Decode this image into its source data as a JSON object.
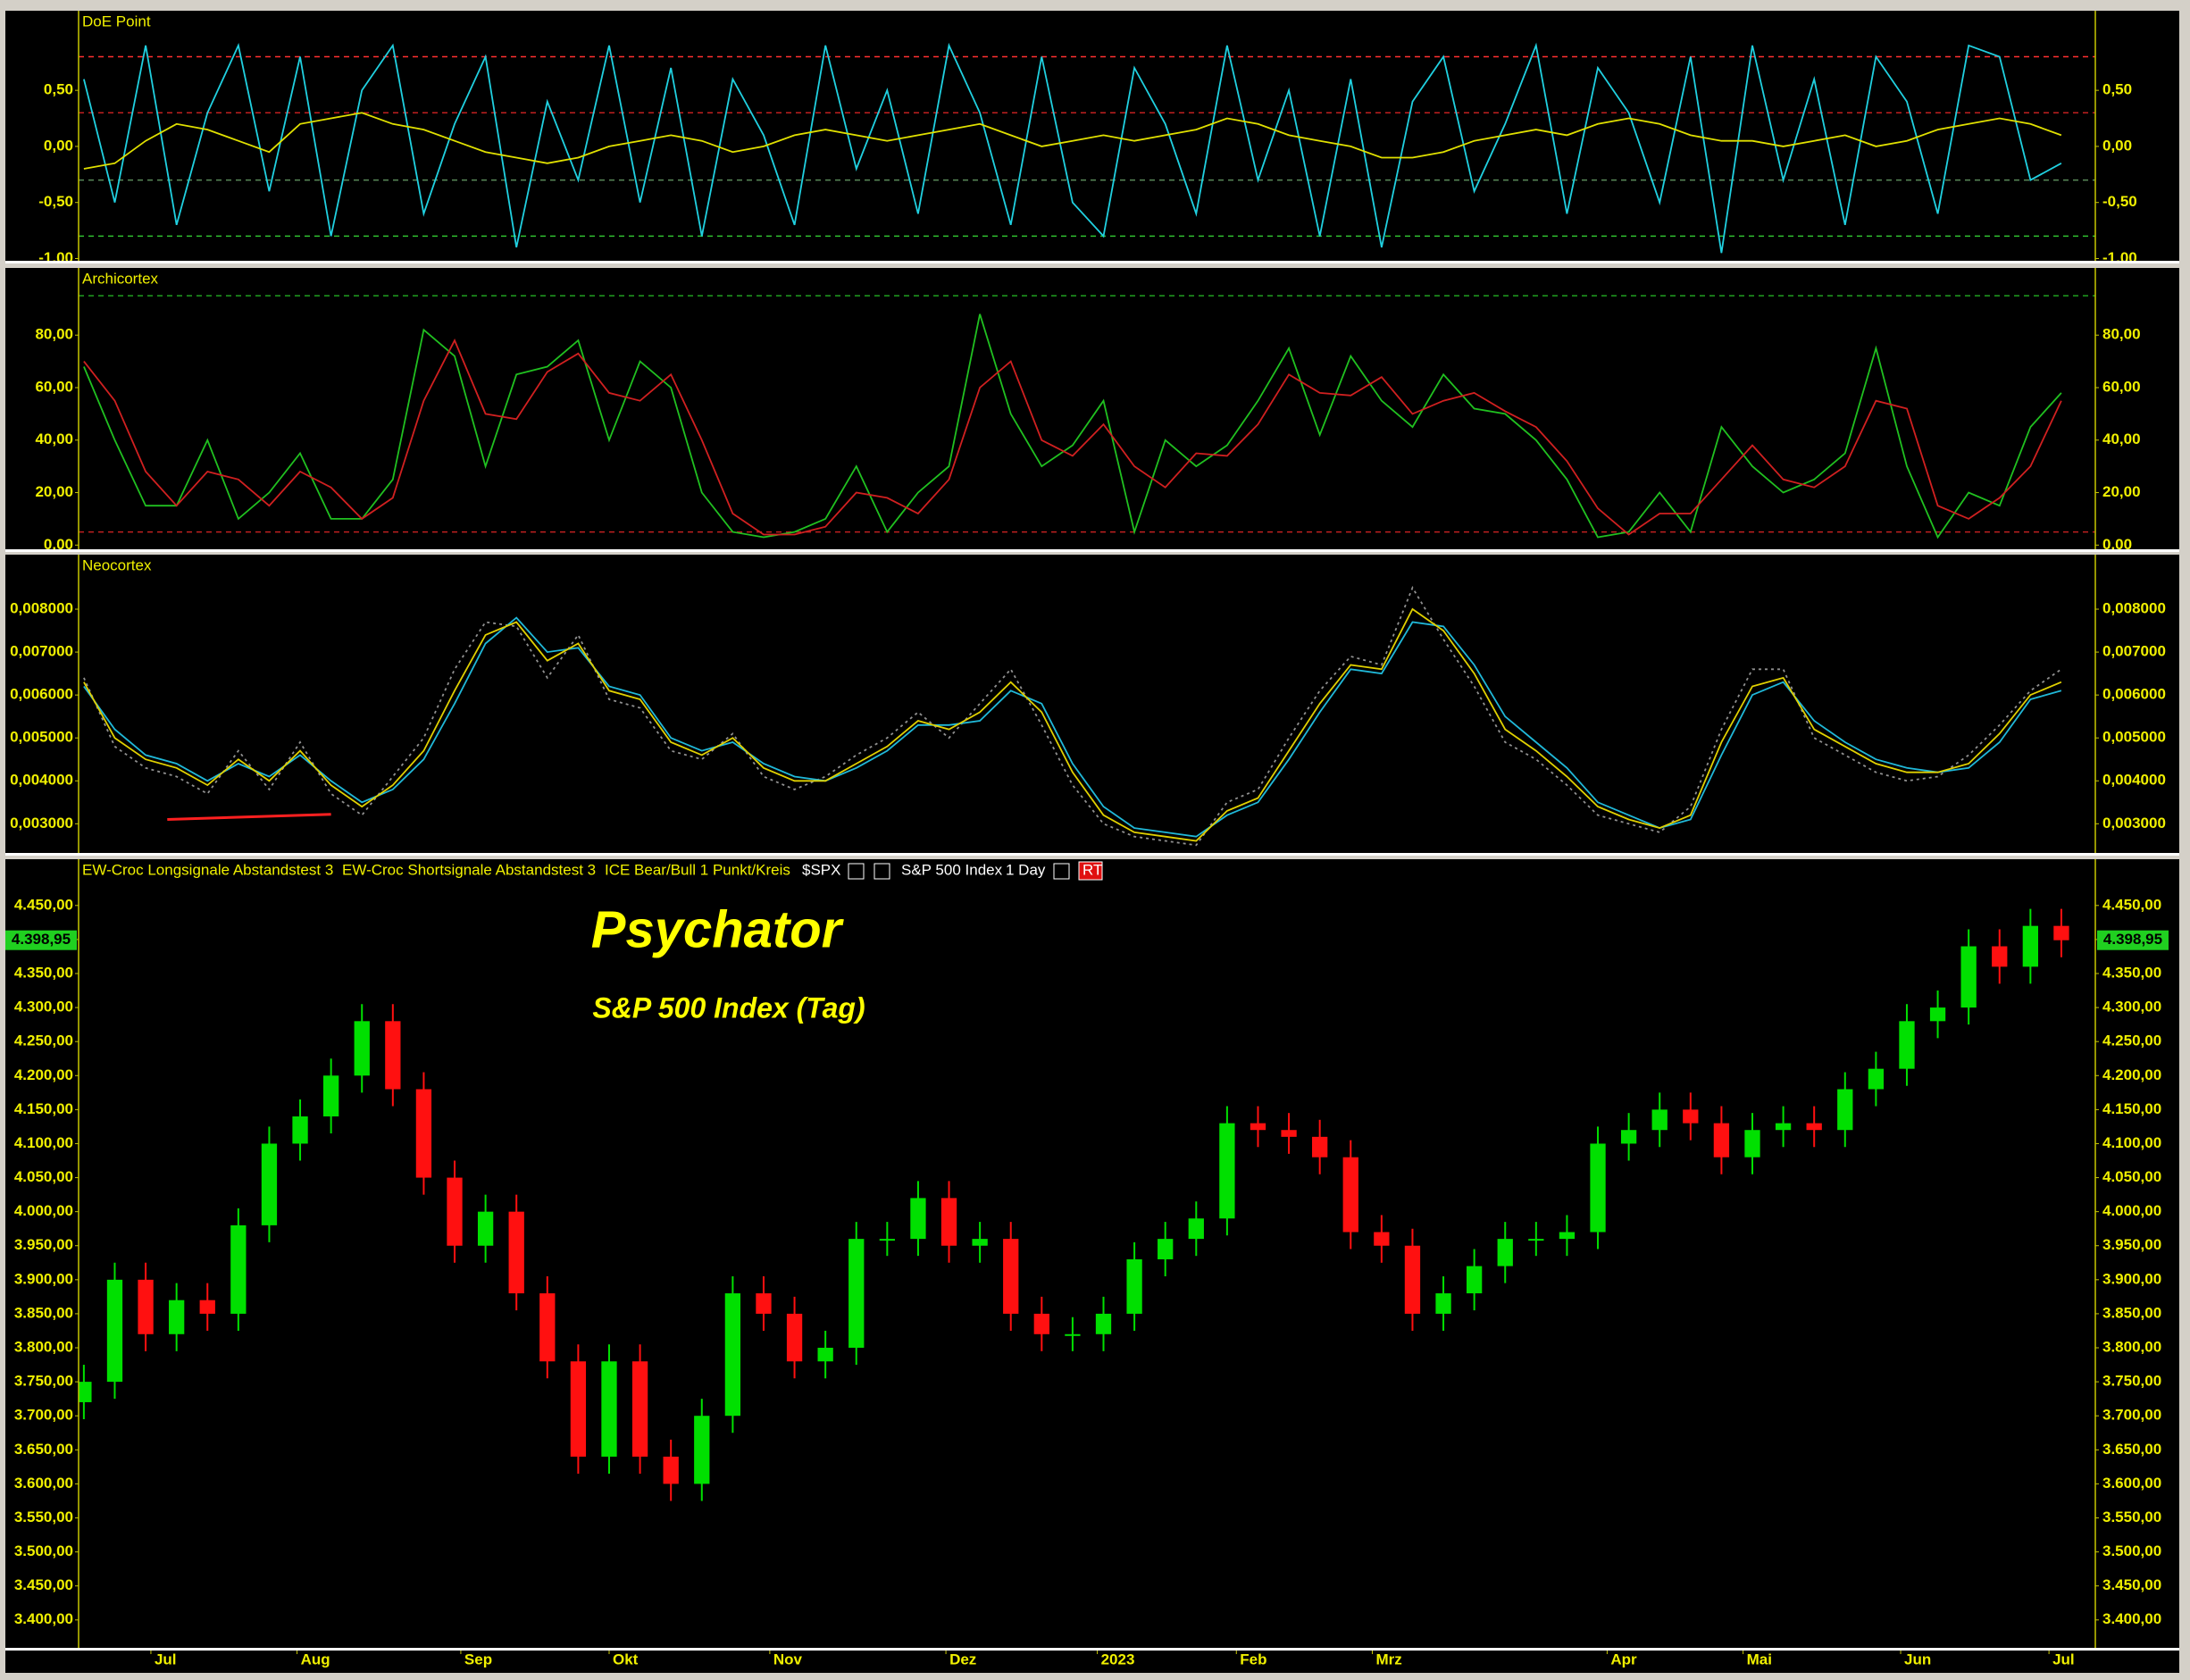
{
  "chart_data": [
    {
      "type": "line",
      "title": "DoE Point",
      "xlim": [
        -0.17,
        65.1
      ],
      "ylim": [
        -1.02,
        1.21
      ],
      "yticks": [
        {
          "value": 0.5,
          "label": "0,50"
        },
        {
          "value": 0,
          "label": "0,00"
        },
        {
          "value": -0.5,
          "label": "-0,50"
        },
        {
          "value": -1,
          "label": "-1,00"
        }
      ],
      "reference_lines": [
        {
          "value": 0.8,
          "color": "#ff3030"
        },
        {
          "value": 0.3,
          "color": "#c02020"
        },
        {
          "value": -0.3,
          "color": "#5a8a5a"
        },
        {
          "value": -0.8,
          "color": "#30c030"
        }
      ],
      "series": [
        {
          "color": "#20d0e0",
          "values": [
            0.6,
            -0.5,
            0.9,
            -0.7,
            0.3,
            0.9,
            -0.4,
            0.8,
            -0.8,
            0.5,
            0.9,
            -0.6,
            0.2,
            0.8,
            -0.9,
            0.4,
            -0.3,
            0.9,
            -0.5,
            0.7,
            -0.8,
            0.6,
            0.1,
            -0.7,
            0.9,
            -0.2,
            0.5,
            -0.6,
            0.9,
            0.3,
            -0.7,
            0.8,
            -0.5,
            -0.8,
            0.7,
            0.2,
            -0.6,
            0.9,
            -0.3,
            0.5,
            -0.8,
            0.6,
            -0.9,
            0.4,
            0.8,
            -0.4,
            0.2,
            0.9,
            -0.6,
            0.7,
            0.3,
            -0.5,
            0.8,
            -0.95,
            0.9,
            -0.3,
            0.6,
            -0.7,
            0.8,
            0.4,
            -0.6,
            0.9,
            0.8,
            -0.3,
            -0.15
          ]
        },
        {
          "color": "#e0e000",
          "values": [
            -0.2,
            -0.15,
            0.05,
            0.2,
            0.15,
            0.05,
            -0.05,
            0.2,
            0.25,
            0.3,
            0.2,
            0.15,
            0.05,
            -0.05,
            -0.1,
            -0.15,
            -0.1,
            0.0,
            0.05,
            0.1,
            0.05,
            -0.05,
            0.0,
            0.1,
            0.15,
            0.1,
            0.05,
            0.1,
            0.15,
            0.2,
            0.1,
            0.0,
            0.05,
            0.1,
            0.05,
            0.1,
            0.15,
            0.25,
            0.2,
            0.1,
            0.05,
            0.0,
            -0.1,
            -0.1,
            -0.05,
            0.05,
            0.1,
            0.15,
            0.1,
            0.2,
            0.25,
            0.2,
            0.1,
            0.05,
            0.05,
            0.0,
            0.05,
            0.1,
            0.0,
            0.05,
            0.15,
            0.2,
            0.25,
            0.2,
            0.1
          ]
        }
      ]
    },
    {
      "type": "line",
      "title": "Archicortex",
      "xlim": [
        -0.17,
        65.1
      ],
      "ylim": [
        -1.6,
        105.6
      ],
      "yticks": [
        {
          "value": 0,
          "label": "0,00"
        },
        {
          "value": 20,
          "label": "20,00"
        },
        {
          "value": 40,
          "label": "40,00"
        },
        {
          "value": 60,
          "label": "60,00"
        },
        {
          "value": 80,
          "label": "80,00"
        }
      ],
      "reference_lines": [
        {
          "value": 95,
          "color": "#20a020"
        },
        {
          "value": 5,
          "color": "#c02020"
        }
      ],
      "series": [
        {
          "color": "#20c020",
          "values": [
            68,
            40,
            15,
            15,
            40,
            10,
            20,
            35,
            10,
            10,
            25,
            82,
            72,
            30,
            65,
            68,
            78,
            40,
            70,
            60,
            20,
            5,
            3,
            5,
            10,
            30,
            5,
            20,
            30,
            88,
            50,
            30,
            38,
            55,
            5,
            40,
            30,
            38,
            55,
            75,
            42,
            72,
            55,
            45,
            65,
            52,
            50,
            40,
            25,
            3,
            5,
            20,
            5,
            45,
            30,
            20,
            25,
            35,
            75,
            30,
            3,
            20,
            15,
            45,
            58
          ]
        },
        {
          "color": "#d02020",
          "values": [
            70,
            55,
            28,
            15,
            28,
            25,
            15,
            28,
            22,
            10,
            18,
            55,
            78,
            50,
            48,
            66,
            73,
            58,
            55,
            65,
            40,
            12,
            4,
            4,
            7,
            20,
            18,
            12,
            25,
            60,
            70,
            40,
            34,
            46,
            30,
            22,
            35,
            34,
            46,
            65,
            58,
            57,
            64,
            50,
            55,
            58,
            51,
            45,
            32,
            14,
            4,
            12,
            12,
            25,
            38,
            25,
            22,
            30,
            55,
            52,
            15,
            10,
            18,
            30,
            55
          ]
        }
      ]
    },
    {
      "type": "line",
      "title": "Neocortex",
      "xlim": [
        -0.17,
        65.1
      ],
      "ylim": [
        0.00232,
        0.00927
      ],
      "yticks": [
        {
          "value": 0.003,
          "label": "0,003000"
        },
        {
          "value": 0.004,
          "label": "0,004000"
        },
        {
          "value": 0.005,
          "label": "0,005000"
        },
        {
          "value": 0.006,
          "label": "0,006000"
        },
        {
          "value": 0.007,
          "label": "0,007000"
        },
        {
          "value": 0.008,
          "label": "0,008000"
        }
      ],
      "trendline": {
        "x": [
          2.7,
          8.0
        ],
        "values": [
          0.0031,
          0.00322
        ],
        "color": "#ff2020"
      },
      "series": [
        {
          "color": "#909090",
          "style": "dotted",
          "values": [
            0.0064,
            0.0048,
            0.0043,
            0.0041,
            0.0037,
            0.0047,
            0.0038,
            0.0049,
            0.0037,
            0.0032,
            0.0041,
            0.005,
            0.0066,
            0.0077,
            0.0076,
            0.0064,
            0.0074,
            0.0059,
            0.0057,
            0.0047,
            0.0045,
            0.0051,
            0.0041,
            0.0038,
            0.0041,
            0.0046,
            0.005,
            0.0056,
            0.005,
            0.0058,
            0.0066,
            0.0053,
            0.0039,
            0.003,
            0.0027,
            0.0026,
            0.0025,
            0.0035,
            0.0038,
            0.005,
            0.0061,
            0.0069,
            0.0067,
            0.0085,
            0.0073,
            0.0062,
            0.0049,
            0.0045,
            0.0039,
            0.0032,
            0.003,
            0.0028,
            0.0034,
            0.0052,
            0.0066,
            0.0066,
            0.005,
            0.0046,
            0.0042,
            0.004,
            0.0041,
            0.0046,
            0.0053,
            0.0061,
            0.0066
          ]
        },
        {
          "color": "#20b8d8",
          "values": [
            0.0062,
            0.0052,
            0.0046,
            0.0044,
            0.004,
            0.0044,
            0.0041,
            0.0046,
            0.004,
            0.0035,
            0.0038,
            0.0045,
            0.0058,
            0.0072,
            0.0078,
            0.007,
            0.0071,
            0.0062,
            0.006,
            0.005,
            0.0047,
            0.0049,
            0.0044,
            0.0041,
            0.004,
            0.0043,
            0.0047,
            0.0053,
            0.0053,
            0.0054,
            0.0061,
            0.0058,
            0.0044,
            0.0034,
            0.0029,
            0.0028,
            0.0027,
            0.0032,
            0.0035,
            0.0045,
            0.0056,
            0.0066,
            0.0065,
            0.0077,
            0.0076,
            0.0067,
            0.0055,
            0.0049,
            0.0043,
            0.0035,
            0.0032,
            0.0029,
            0.0031,
            0.0046,
            0.006,
            0.0063,
            0.0054,
            0.0049,
            0.0045,
            0.0043,
            0.0042,
            0.0043,
            0.0049,
            0.0059,
            0.0061
          ]
        },
        {
          "color": "#e0d000",
          "values": [
            0.0063,
            0.005,
            0.0045,
            0.0043,
            0.0039,
            0.0045,
            0.004,
            0.0047,
            0.0039,
            0.0034,
            0.0039,
            0.0047,
            0.0061,
            0.0074,
            0.0077,
            0.0068,
            0.0072,
            0.0061,
            0.0059,
            0.0049,
            0.0046,
            0.005,
            0.0043,
            0.004,
            0.004,
            0.0044,
            0.0048,
            0.0054,
            0.0052,
            0.0056,
            0.0063,
            0.0056,
            0.0042,
            0.0032,
            0.0028,
            0.0027,
            0.0026,
            0.0033,
            0.0036,
            0.0047,
            0.0058,
            0.0067,
            0.0066,
            0.008,
            0.0075,
            0.0065,
            0.0052,
            0.0047,
            0.0041,
            0.0034,
            0.0031,
            0.0029,
            0.0032,
            0.0049,
            0.0062,
            0.0064,
            0.0052,
            0.0048,
            0.0044,
            0.0042,
            0.0042,
            0.0044,
            0.0051,
            0.006,
            0.0063
          ]
        }
      ]
    },
    {
      "type": "candlestick",
      "title": "Psychator",
      "subtitle": "S&P 500 Index (Tag)",
      "header": [
        "EW-Croc Longsignale Abstandstest 3",
        "EW-Croc Shortsignale Abstandstest 3",
        "ICE Bear/Bull 1 Punkt/Kreis",
        "$SPX",
        "S&P 500 Index",
        "1 Day",
        "RT"
      ],
      "up_color": "#00e000",
      "down_color": "#ff1010",
      "xlim": [
        -0.17,
        65.1
      ],
      "ylim": [
        3359,
        4518
      ],
      "xticks": [
        {
          "value": 2.17,
          "label": "Jul"
        },
        {
          "value": 6.9,
          "label": "Aug"
        },
        {
          "value": 12.2,
          "label": "Sep"
        },
        {
          "value": 17.0,
          "label": "Okt"
        },
        {
          "value": 22.2,
          "label": "Nov"
        },
        {
          "value": 27.9,
          "label": "Dez"
        },
        {
          "value": 32.8,
          "label": "2023"
        },
        {
          "value": 37.3,
          "label": "Feb"
        },
        {
          "value": 41.7,
          "label": "Mrz"
        },
        {
          "value": 49.3,
          "label": "Apr"
        },
        {
          "value": 53.7,
          "label": "Mai"
        },
        {
          "value": 58.8,
          "label": "Jun"
        },
        {
          "value": 63.6,
          "label": "Jul"
        }
      ],
      "yticks": [
        {
          "value": 3400,
          "label": "3.400,00"
        },
        {
          "value": 3450,
          "label": "3.450,00"
        },
        {
          "value": 3500,
          "label": "3.500,00"
        },
        {
          "value": 3550,
          "label": "3.550,00"
        },
        {
          "value": 3600,
          "label": "3.600,00"
        },
        {
          "value": 3650,
          "label": "3.650,00"
        },
        {
          "value": 3700,
          "label": "3.700,00"
        },
        {
          "value": 3750,
          "label": "3.750,00"
        },
        {
          "value": 3800,
          "label": "3.800,00"
        },
        {
          "value": 3850,
          "label": "3.850,00"
        },
        {
          "value": 3900,
          "label": "3.900,00"
        },
        {
          "value": 3950,
          "label": "3.950,00"
        },
        {
          "value": 4000,
          "label": "4.000,00"
        },
        {
          "value": 4050,
          "label": "4.050,00"
        },
        {
          "value": 4100,
          "label": "4.100,00"
        },
        {
          "value": 4150,
          "label": "4.150,00"
        },
        {
          "value": 4200,
          "label": "4.200,00"
        },
        {
          "value": 4250,
          "label": "4.250,00"
        },
        {
          "value": 4300,
          "label": "4.300,00"
        },
        {
          "value": 4350,
          "label": "4.350,00"
        },
        {
          "value": 4400,
          "label": "4.400,00"
        },
        {
          "value": 4450,
          "label": "4.450,00"
        }
      ],
      "last_price": {
        "value": 4398.95,
        "label": "4.398,95"
      },
      "open": [
        3720,
        3750,
        3900,
        3820,
        3870,
        3850,
        3980,
        4100,
        4140,
        4200,
        4280,
        4180,
        4050,
        3950,
        4000,
        3880,
        3780,
        3640,
        3780,
        3640,
        3600,
        3700,
        3880,
        3850,
        3780,
        3800,
        3960,
        3960,
        4020,
        3950,
        3960,
        3850,
        3820,
        3820,
        3850,
        3930,
        3960,
        3990,
        4130,
        4120,
        4110,
        4080,
        3970,
        3950,
        3850,
        3880,
        3920,
        3960,
        3960,
        3970,
        4100,
        4120,
        4150,
        4130,
        4080,
        4120,
        4130,
        4120,
        4180,
        4210,
        4280,
        4300,
        4390,
        4360,
        4420
      ],
      "high": [
        3775,
        3925,
        3925,
        3895,
        3895,
        4005,
        4125,
        4165,
        4225,
        4305,
        4305,
        4205,
        4075,
        4025,
        4025,
        3905,
        3805,
        3805,
        3805,
        3665,
        3725,
        3905,
        3905,
        3875,
        3825,
        3985,
        3985,
        4045,
        4045,
        3985,
        3985,
        3875,
        3845,
        3875,
        3955,
        3985,
        4015,
        4155,
        4155,
        4145,
        4135,
        4105,
        3995,
        3975,
        3905,
        3945,
        3985,
        3985,
        3995,
        4125,
        4145,
        4175,
        4175,
        4155,
        4145,
        4155,
        4155,
        4205,
        4235,
        4305,
        4325,
        4415,
        4415,
        4445,
        4445
      ],
      "low": [
        3695,
        3725,
        3795,
        3795,
        3825,
        3825,
        3955,
        4075,
        4115,
        4175,
        4155,
        4025,
        3925,
        3925,
        3855,
        3755,
        3615,
        3615,
        3615,
        3575,
        3575,
        3675,
        3825,
        3755,
        3755,
        3775,
        3935,
        3935,
        3925,
        3925,
        3825,
        3795,
        3795,
        3795,
        3825,
        3905,
        3935,
        3965,
        4095,
        4085,
        4055,
        3945,
        3925,
        3825,
        3825,
        3855,
        3895,
        3935,
        3935,
        3945,
        4075,
        4095,
        4105,
        4055,
        4055,
        4095,
        4095,
        4095,
        4155,
        4185,
        4255,
        4275,
        4335,
        4335,
        4373.95
      ],
      "close": [
        3750,
        3900,
        3820,
        3870,
        3850,
        3980,
        4100,
        4140,
        4200,
        4280,
        4180,
        4050,
        3950,
        4000,
        3880,
        3780,
        3640,
        3780,
        3640,
        3600,
        3700,
        3880,
        3850,
        3780,
        3800,
        3960,
        3960,
        4020,
        3950,
        3960,
        3850,
        3820,
        3820,
        3850,
        3930,
        3960,
        3990,
        4130,
        4120,
        4110,
        4080,
        3970,
        3950,
        3850,
        3880,
        3920,
        3960,
        3960,
        3970,
        4100,
        4120,
        4150,
        4130,
        4080,
        4120,
        4130,
        4120,
        4180,
        4210,
        4280,
        4300,
        4390,
        4360,
        4420,
        4398.95
      ]
    }
  ]
}
